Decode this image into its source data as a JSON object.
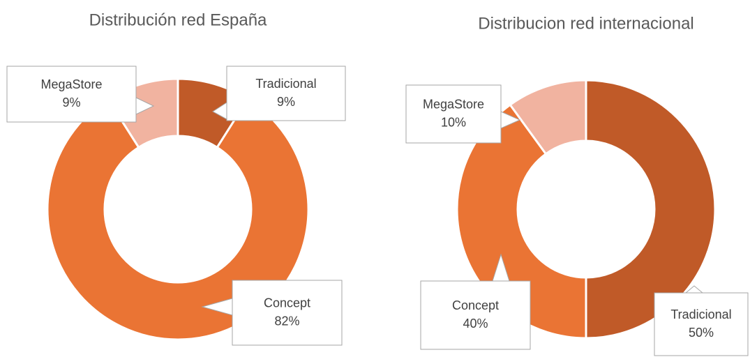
{
  "chart_data": [
    {
      "type": "donut",
      "title": "Distribución red España",
      "categories": [
        "Tradicional",
        "Concept",
        "MegaStore"
      ],
      "values": [
        9,
        82,
        9
      ],
      "value_labels": [
        "9%",
        "82%",
        "9%"
      ],
      "colors": [
        "#c05a28",
        "#ea7434",
        "#f1b3a0"
      ]
    },
    {
      "type": "donut",
      "title": "Distribucion red internacional",
      "categories": [
        "Tradicional",
        "Concept",
        "MegaStore"
      ],
      "values": [
        50,
        40,
        10
      ],
      "value_labels": [
        "50%",
        "40%",
        "10%"
      ],
      "colors": [
        "#c05a28",
        "#ea7434",
        "#f1b3a0"
      ]
    }
  ]
}
